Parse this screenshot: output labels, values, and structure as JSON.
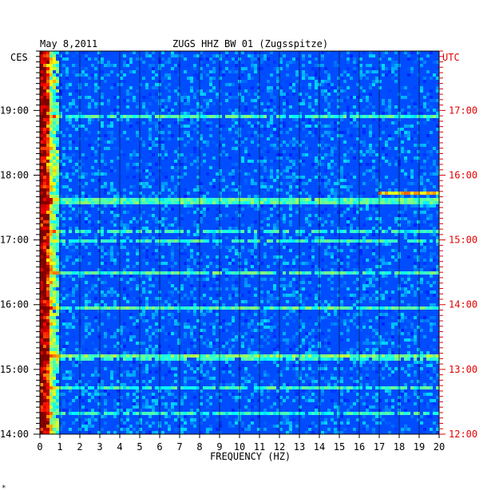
{
  "header": {
    "date": "May 8,2011",
    "station": "ZUGS HHZ BW 01 (Zugsspitze)",
    "left_tz": "CES",
    "right_tz": "UTC"
  },
  "footer": {
    "mark": "*"
  },
  "colors": {
    "background_low": "#0000c8",
    "high": "#ff0000",
    "axis": "#000000",
    "utc_labels": "#e00000"
  },
  "chart_data": {
    "type": "heatmap",
    "title": "ZUGS HHZ BW 01 (Zugsspitze)",
    "xlabel": "FREQUENCY (HZ)",
    "x_range": [
      0,
      20
    ],
    "x_ticks": [
      "0",
      "1",
      "2",
      "3",
      "4",
      "5",
      "6",
      "7",
      "8",
      "9",
      "10",
      "11",
      "12",
      "13",
      "14",
      "15",
      "16",
      "17",
      "18",
      "19",
      "20"
    ],
    "y_range_local": [
      "14:00",
      "19:55"
    ],
    "y_ticks_left": [
      "19:00",
      "18:00",
      "17:00",
      "16:00",
      "15:00",
      "14:00"
    ],
    "y_ticks_right": [
      "17:00",
      "16:00",
      "15:00",
      "14:00",
      "13:00",
      "12:00"
    ],
    "colormap": "jet",
    "features": [
      {
        "note": "strong low-frequency energy",
        "freq_hz": [
          0,
          0.8
        ],
        "time": "14:00-19:55"
      },
      {
        "note": "broadband line",
        "freq_hz": [
          17,
          20
        ],
        "time_local": "17:45"
      }
    ]
  }
}
